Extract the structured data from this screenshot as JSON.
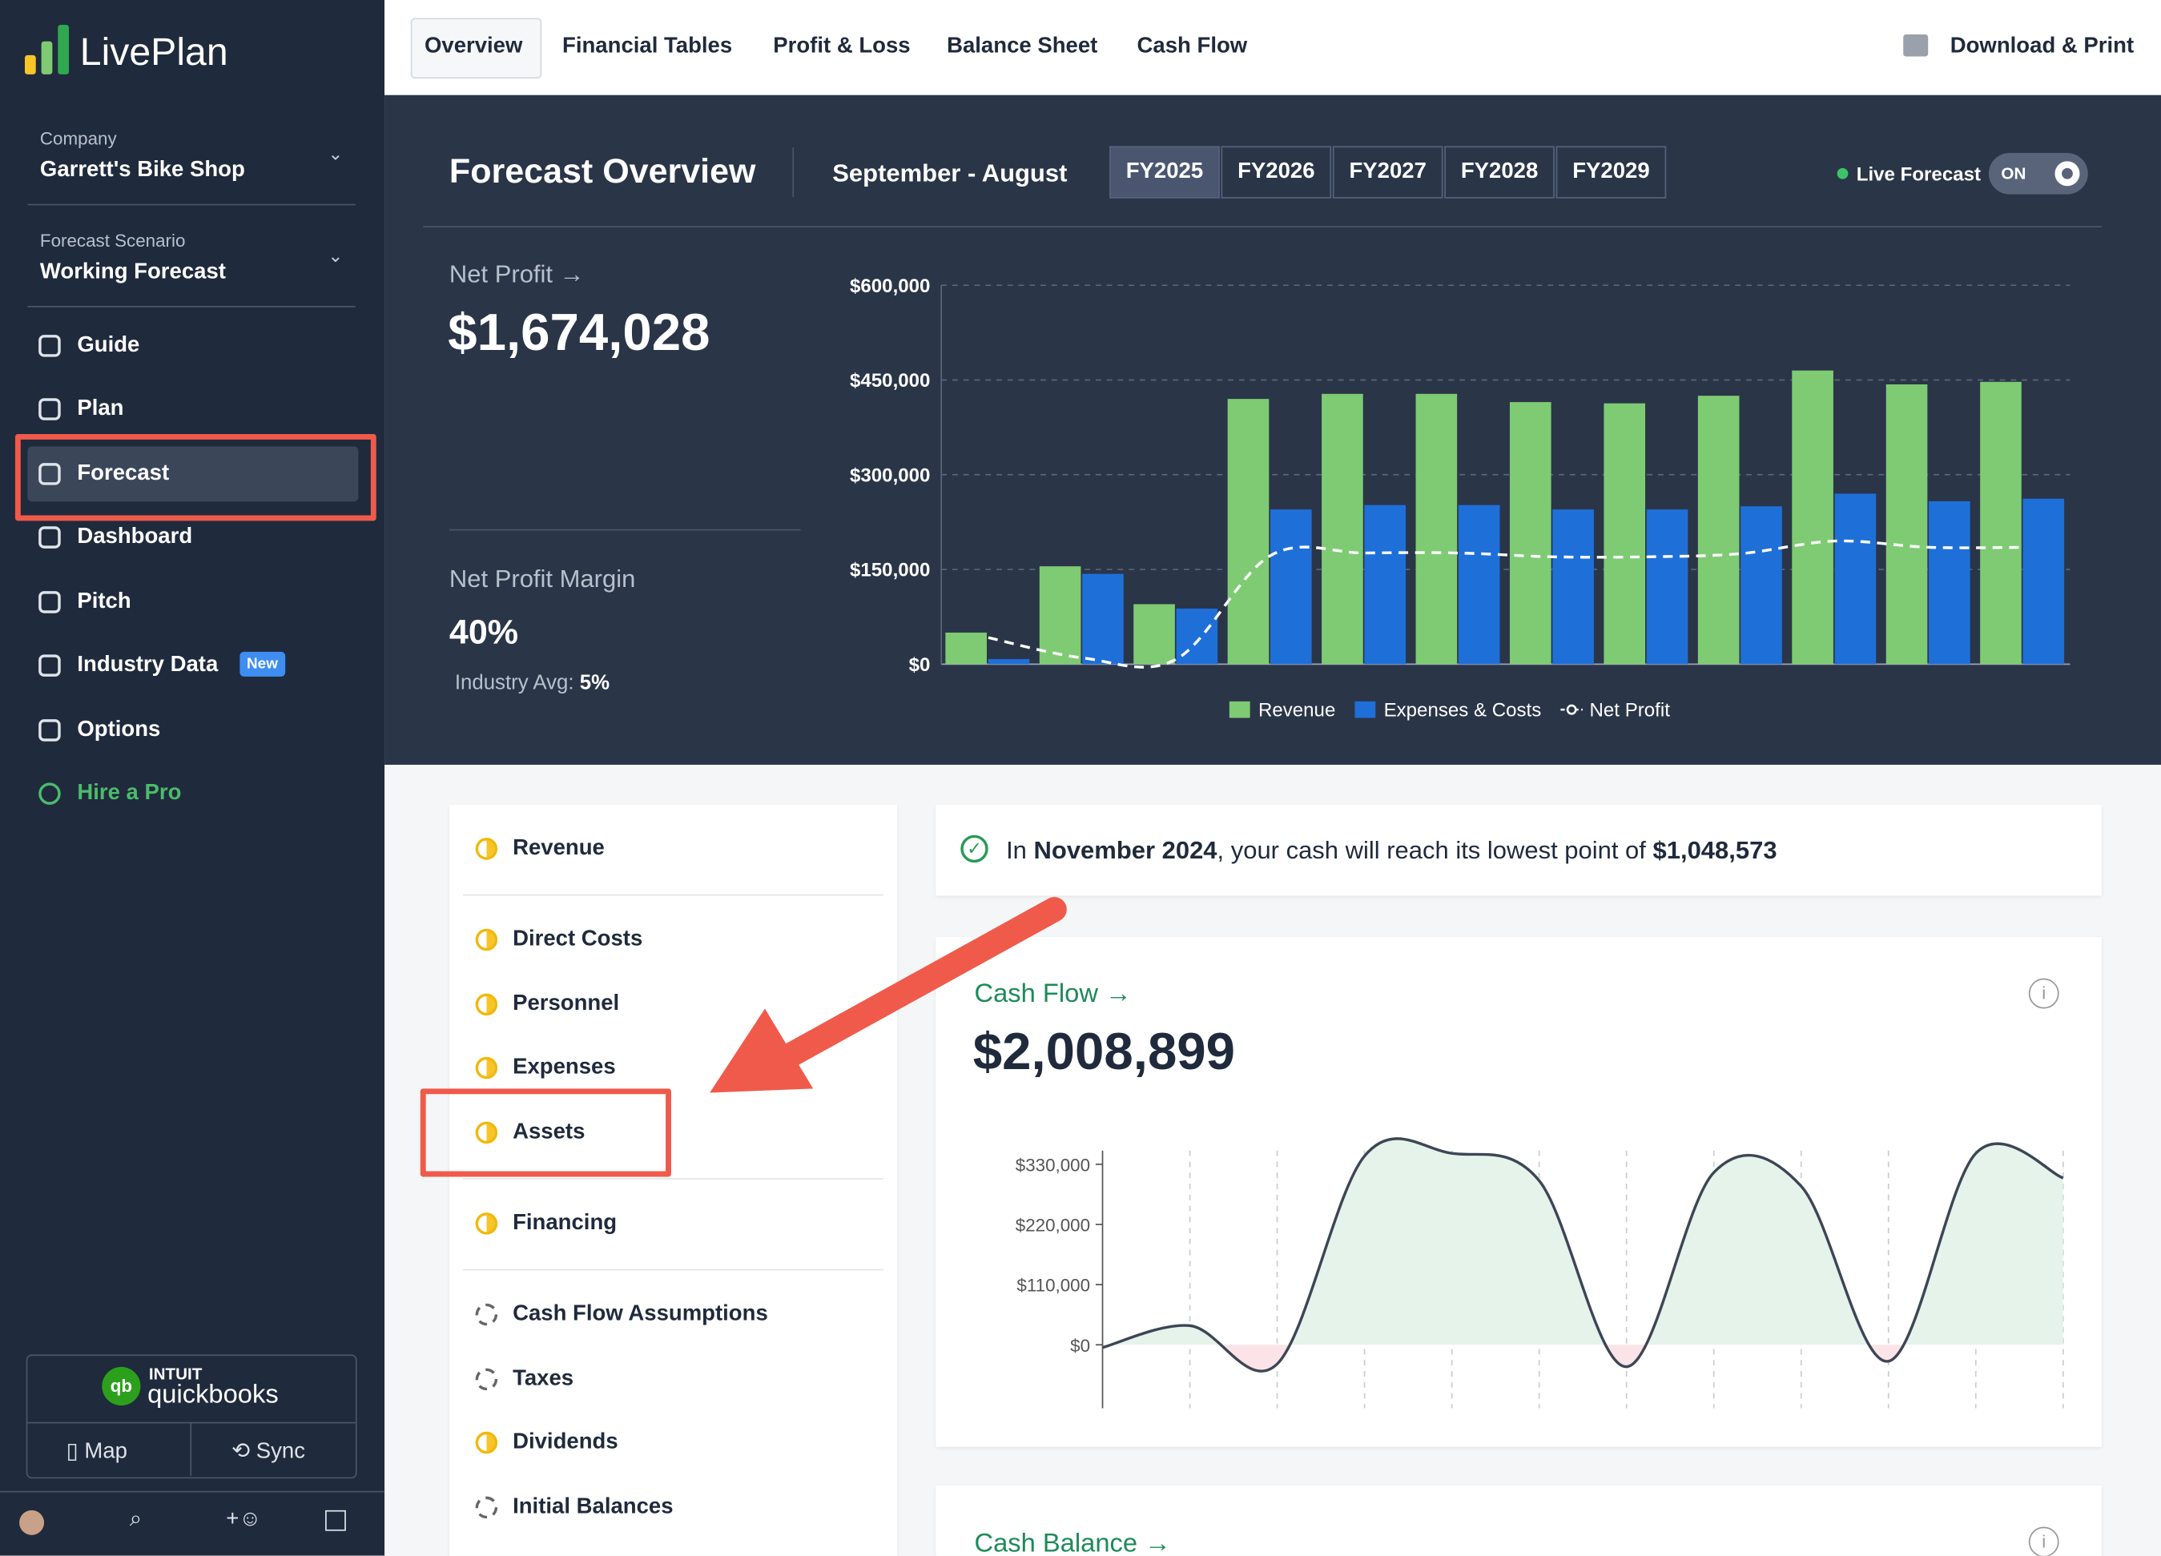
{
  "sidebar": {
    "brand": "LivePlan",
    "company_label": "Company",
    "company": "Garrett's Bike Shop",
    "scenario_label": "Forecast Scenario",
    "scenario": "Working Forecast",
    "menu": [
      "Guide",
      "Plan",
      "Forecast",
      "Dashboard",
      "Pitch",
      "Industry Data",
      "Options",
      "Hire a Pro"
    ],
    "new_badge": "New",
    "quickbooks": {
      "brand_top": "INTUIT",
      "brand": "quickbooks",
      "map": "Map",
      "sync": "Sync"
    }
  },
  "top_nav": {
    "tabs": [
      "Overview",
      "Financial Tables",
      "Profit & Loss",
      "Balance Sheet",
      "Cash Flow"
    ],
    "download": "Download & Print"
  },
  "overview": {
    "title": "Forecast Overview",
    "period": "September - August",
    "years": [
      "FY2025",
      "FY2026",
      "FY2027",
      "FY2028",
      "FY2029"
    ],
    "live_forecast": "Live Forecast",
    "toggle": "ON",
    "net_profit_label": "Net Profit →",
    "net_profit": "$1,674,028",
    "margin_label": "Net Profit Margin",
    "margin": "40%",
    "industry_avg_label": "Industry Avg:",
    "industry_avg": "5%"
  },
  "chart_data": [
    {
      "type": "bar",
      "categories": [
        null,
        null,
        null,
        null,
        null,
        null,
        null,
        null,
        null,
        null,
        null,
        null
      ],
      "series": [
        {
          "name": "Revenue",
          "color": "#7ecb73",
          "values": [
            50000,
            155000,
            95000,
            420000,
            428000,
            428000,
            415000,
            413000,
            425000,
            465000,
            443000,
            447000
          ]
        },
        {
          "name": "Expenses & Costs",
          "color": "#1f6fd8",
          "values": [
            8000,
            143000,
            88000,
            245000,
            252000,
            252000,
            245000,
            245000,
            250000,
            270000,
            258000,
            262000
          ]
        },
        {
          "name": "Net Profit",
          "type": "line",
          "color": "#ffffff",
          "values": [
            42000,
            10000,
            8000,
            172000,
            176000,
            176000,
            170000,
            170000,
            175000,
            195000,
            185000,
            185000
          ]
        }
      ],
      "ylim": [
        0,
        600000
      ],
      "yticks": [
        {
          "value": 0,
          "label": "$0"
        },
        {
          "value": 150000,
          "label": "$150,000"
        },
        {
          "value": 300000,
          "label": "$300,000"
        },
        {
          "value": 450000,
          "label": "$450,000"
        },
        {
          "value": 600000,
          "label": "$600,000"
        }
      ],
      "grid": true
    },
    {
      "type": "line",
      "categories": [
        null,
        null,
        null,
        null,
        null,
        null,
        null,
        null,
        null,
        null,
        null,
        null
      ],
      "series": [
        {
          "color": "#3d4656",
          "values": [
            -5000,
            35000,
            -35000,
            345000,
            350000,
            300000,
            -40000,
            315000,
            290000,
            -30000,
            350000,
            305000
          ]
        }
      ],
      "ylim": [
        -116000,
        355000
      ],
      "yticks": [
        {
          "value": 0,
          "label": "$0"
        },
        {
          "value": 110000,
          "label": "$110,000"
        },
        {
          "value": 220000,
          "label": "$220,000"
        },
        {
          "value": 330000,
          "label": "$330,000"
        }
      ]
    }
  ],
  "checklist": {
    "items": [
      "Revenue",
      "Direct Costs",
      "Personnel",
      "Expenses",
      "Assets",
      "Financing",
      "Cash Flow Assumptions",
      "Taxes",
      "Dividends",
      "Initial Balances"
    ]
  },
  "cash_alert": {
    "prefix": "In",
    "month": "November 2024",
    "middle": ", your cash will reach its lowest point of",
    "amount": "$1,048,573"
  },
  "cash_flow_card": {
    "title": "Cash Flow →",
    "value": "$2,008,899"
  },
  "cash_balance_card": {
    "title": "Cash Balance →"
  }
}
